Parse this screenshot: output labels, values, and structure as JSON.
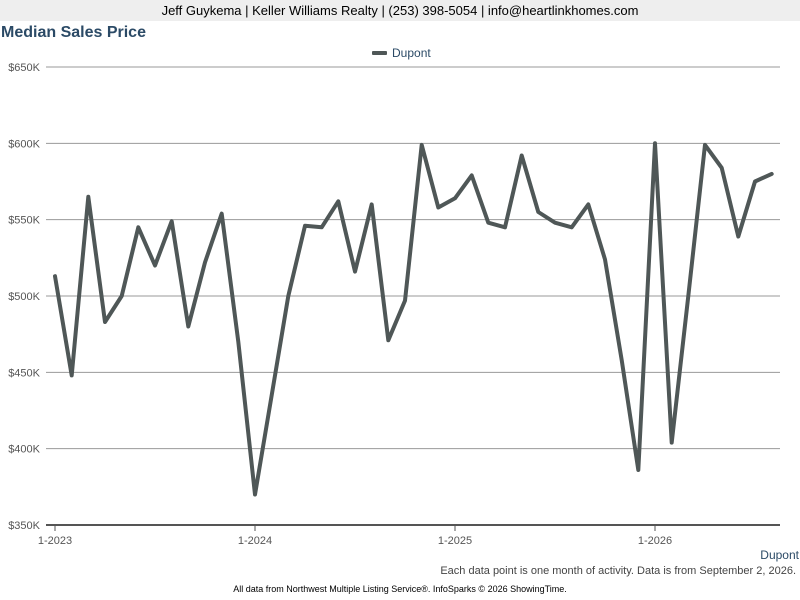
{
  "header": {
    "contact": "Jeff Guykema | Keller Williams Realty | (253) 398-5054 | info@heartlinkhomes.com"
  },
  "chart_data": {
    "type": "line",
    "title": "Median Sales Price",
    "xlabel": "",
    "ylabel": "",
    "ylim": [
      350000,
      650000
    ],
    "y_ticks": [
      350000,
      400000,
      450000,
      500000,
      550000,
      600000,
      650000
    ],
    "y_tick_labels": [
      "$350K",
      "$400K",
      "$450K",
      "$500K",
      "$550K",
      "$600K",
      "$650K"
    ],
    "x_tick_labels": [
      "1-2023",
      "1-2024",
      "1-2025",
      "1-2026"
    ],
    "x": [
      "2023-01",
      "2023-02",
      "2023-03",
      "2023-04",
      "2023-05",
      "2023-06",
      "2023-07",
      "2023-08",
      "2023-09",
      "2023-10",
      "2023-11",
      "2023-12",
      "2024-01",
      "2024-02",
      "2024-03",
      "2024-04",
      "2024-05",
      "2024-06",
      "2024-07",
      "2024-08",
      "2024-09",
      "2024-10",
      "2024-11",
      "2024-12",
      "2025-01",
      "2025-02",
      "2025-03",
      "2025-04",
      "2025-05",
      "2025-06",
      "2025-07",
      "2025-08",
      "2025-09",
      "2025-10",
      "2025-11",
      "2025-12",
      "2026-01",
      "2026-02",
      "2026-03",
      "2026-04",
      "2026-05",
      "2026-06",
      "2026-07",
      "2026-08"
    ],
    "series": [
      {
        "name": "Dupont",
        "color": "#4f5757",
        "values": [
          513000,
          448000,
          565000,
          483000,
          500000,
          545000,
          520000,
          549000,
          480000,
          522000,
          554000,
          470000,
          370000,
          435000,
          500000,
          546000,
          545000,
          562000,
          516000,
          560000,
          471000,
          497000,
          599000,
          558000,
          564000,
          579000,
          548000,
          545000,
          592000,
          555000,
          548000,
          545000,
          560000,
          524000,
          458000,
          386000,
          600000,
          404000,
          500000,
          599000,
          584000,
          539000,
          575000,
          580000
        ]
      }
    ],
    "grid": true,
    "legend": "top-center",
    "series_label": "Dupont",
    "note": "Each data point is one month of activity. Data is from September 2, 2026."
  },
  "footer": {
    "text": "All data from Northwest Multiple Listing Service®. InfoSparks © 2026 ShowingTime."
  }
}
